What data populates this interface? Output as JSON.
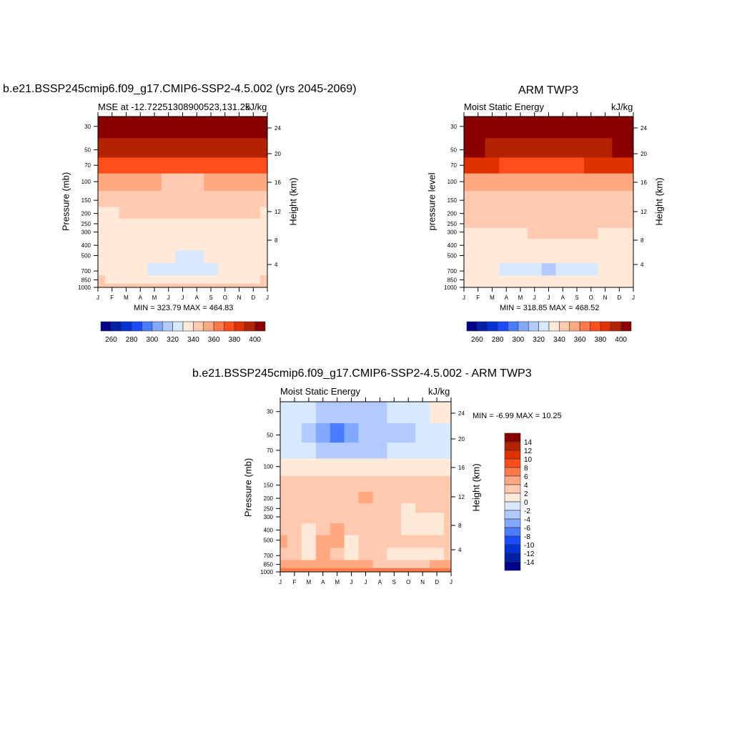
{
  "chart_data": [
    {
      "type": "heatmap",
      "title": "b.e21.BSSP245cmip6.f09_g17.CMIP6-SSP2-4.5.002 (yrs 2045-2069)",
      "left_string": "MSE at -12.72251308900523,131.25",
      "right_string": "kJ/kg",
      "ylabel": "Pressure (mb)",
      "ylabel_right": "Height (km)",
      "minmax": "MIN = 323.79 MAX = 464.83",
      "x_ticks": [
        "J",
        "F",
        "M",
        "A",
        "M",
        "J",
        "J",
        "A",
        "S",
        "O",
        "N",
        "D",
        "J"
      ],
      "y_ticks": [
        "30",
        "50",
        "70",
        "100",
        "150",
        "200",
        "250",
        "300",
        "400",
        "500",
        "700",
        "850",
        "1000"
      ],
      "y_ticks_right": [
        "24",
        "20",
        "16",
        "12",
        "8",
        "4"
      ],
      "levels": [
        30,
        50,
        70,
        100,
        150,
        200,
        250,
        300,
        400,
        500,
        700,
        850,
        1000
      ],
      "values": [
        [
          420,
          420,
          420,
          420,
          420,
          420,
          420,
          420,
          420,
          420,
          420,
          420,
          420
        ],
        [
          398,
          396,
          395,
          395,
          394,
          392,
          392,
          393,
          394,
          395,
          395,
          396,
          398
        ],
        [
          378,
          378,
          377,
          376,
          375,
          374,
          374,
          375,
          376,
          377,
          378,
          378,
          378
        ],
        [
          352,
          352,
          351,
          350,
          350,
          349,
          349,
          349,
          350,
          351,
          352,
          352,
          352
        ],
        [
          345,
          345,
          344,
          344,
          344,
          344,
          344,
          344,
          344,
          345,
          345,
          345,
          345
        ],
        [
          338,
          338,
          341,
          342,
          342,
          342,
          342,
          342,
          342,
          344,
          344,
          342,
          338
        ],
        [
          335,
          335,
          336,
          337,
          337,
          337,
          337,
          337,
          337,
          337,
          336,
          336,
          335
        ],
        [
          335,
          335,
          335,
          335,
          335,
          335,
          335,
          335,
          335,
          335,
          335,
          335,
          335
        ],
        [
          334,
          334,
          334,
          333,
          333,
          333,
          333,
          333,
          333,
          334,
          336,
          335,
          334
        ],
        [
          332,
          332,
          332,
          332,
          332,
          330,
          328,
          328,
          330,
          338,
          338,
          335,
          332
        ],
        [
          335,
          335,
          332,
          330,
          328,
          325,
          325,
          325,
          328,
          332,
          335,
          335,
          335
        ],
        [
          340,
          338,
          335,
          335,
          335,
          332,
          332,
          335,
          335,
          338,
          338,
          338,
          340
        ],
        [
          342,
          342,
          342,
          342,
          342,
          342,
          342,
          342,
          342,
          342,
          342,
          342,
          342
        ]
      ]
    },
    {
      "type": "heatmap",
      "title": "ARM TWP3",
      "left_string": "Moist Static Energy",
      "right_string": "kJ/kg",
      "ylabel": "pressure level",
      "ylabel_right": "Height (km)",
      "minmax": "MIN = 318.85 MAX = 468.52",
      "x_ticks": [
        "J",
        "F",
        "M",
        "A",
        "M",
        "J",
        "J",
        "A",
        "S",
        "O",
        "N",
        "D",
        "J"
      ],
      "y_ticks": [
        "30",
        "50",
        "70",
        "100",
        "150",
        "200",
        "250",
        "300",
        "400",
        "500",
        "700",
        "850",
        "1000"
      ],
      "y_ticks_right": [
        "24",
        "20",
        "16",
        "12",
        "8",
        "4"
      ],
      "levels": [
        30,
        50,
        70,
        100,
        150,
        200,
        250,
        300,
        400,
        500,
        700,
        850,
        1000
      ],
      "values": [
        [
          422,
          422,
          422,
          422,
          422,
          422,
          422,
          422,
          422,
          422,
          422,
          422,
          422
        ],
        [
          400,
          400,
          399,
          398,
          396,
          395,
          395,
          396,
          397,
          398,
          399,
          400,
          400
        ],
        [
          382,
          381,
          380,
          379,
          378,
          377,
          377,
          378,
          379,
          380,
          381,
          382,
          382
        ],
        [
          352,
          352,
          352,
          351,
          351,
          350,
          350,
          350,
          351,
          352,
          352,
          352,
          352
        ],
        [
          345,
          345,
          345,
          345,
          345,
          345,
          345,
          345,
          345,
          345,
          345,
          345,
          345
        ],
        [
          345,
          345,
          344,
          344,
          344,
          344,
          344,
          344,
          344,
          344,
          344,
          345,
          345
        ],
        [
          342,
          342,
          342,
          342,
          342,
          342,
          342,
          342,
          342,
          342,
          342,
          342,
          342
        ],
        [
          338,
          338,
          338,
          338,
          338,
          341,
          341,
          341,
          341,
          341,
          338,
          338,
          338
        ],
        [
          335,
          335,
          335,
          335,
          335,
          335,
          335,
          335,
          335,
          335,
          335,
          335,
          335
        ],
        [
          333,
          333,
          333,
          333,
          330,
          330,
          330,
          330,
          330,
          333,
          333,
          333,
          333
        ],
        [
          335,
          335,
          332,
          328,
          325,
          322,
          318,
          322,
          325,
          328,
          332,
          335,
          335
        ],
        [
          335,
          335,
          335,
          335,
          334,
          333,
          333,
          333,
          334,
          335,
          335,
          335,
          335
        ],
        [
          338,
          338,
          338,
          338,
          338,
          338,
          338,
          338,
          338,
          338,
          338,
          338,
          338
        ]
      ]
    },
    {
      "type": "heatmap",
      "title": "b.e21.BSSP245cmip6.f09_g17.CMIP6-SSP2-4.5.002 - ARM TWP3",
      "left_string": "Moist Static Energy",
      "right_string": "kJ/kg",
      "ylabel": "Pressure (mb)",
      "ylabel_right": "Height (km)",
      "minmax": "MIN =  -6.99 MAX =  10.25",
      "x_ticks": [
        "J",
        "F",
        "M",
        "A",
        "M",
        "J",
        "J",
        "A",
        "S",
        "O",
        "N",
        "D",
        "J"
      ],
      "y_ticks": [
        "30",
        "50",
        "70",
        "100",
        "150",
        "200",
        "250",
        "300",
        "400",
        "500",
        "700",
        "850",
        "1000"
      ],
      "y_ticks_right": [
        "24",
        "20",
        "16",
        "12",
        "8",
        "4"
      ],
      "levels": [
        30,
        50,
        70,
        100,
        150,
        200,
        250,
        300,
        400,
        500,
        700,
        850,
        1000
      ],
      "values": [
        [
          -1,
          -2,
          -2,
          -3,
          -4,
          -4,
          -4,
          -3,
          -2,
          -1,
          -1,
          1,
          1
        ],
        [
          -2,
          -2,
          -4,
          -5,
          -7,
          -5,
          -4,
          -4,
          -4,
          -3,
          -2,
          -2,
          -1
        ],
        [
          -1,
          -1,
          -2,
          -3,
          -3,
          -3,
          -3,
          -3,
          -2,
          -2,
          -1,
          -1,
          -1
        ],
        [
          1,
          1,
          1,
          1,
          1,
          1,
          1,
          1,
          1,
          1,
          1,
          1,
          1
        ],
        [
          3,
          3,
          3,
          3,
          3,
          3,
          3,
          3,
          3,
          3,
          3,
          3,
          3
        ],
        [
          3,
          3,
          3,
          3,
          3,
          3,
          5,
          3,
          3,
          3,
          3,
          3,
          3
        ],
        [
          3,
          3,
          3,
          3,
          3,
          3,
          3,
          3,
          3,
          1,
          3,
          3,
          3
        ],
        [
          3,
          3,
          3,
          3,
          3,
          3,
          3,
          3,
          3,
          1,
          1,
          1,
          3
        ],
        [
          3,
          3,
          1,
          3,
          5,
          3,
          3,
          3,
          3,
          1,
          1,
          1,
          3
        ],
        [
          5,
          3,
          1,
          5,
          5,
          1,
          3,
          3,
          3,
          3,
          3,
          3,
          3
        ],
        [
          3,
          3,
          1,
          5,
          3,
          1,
          3,
          3,
          1,
          1,
          1,
          1,
          3
        ],
        [
          5,
          5,
          5,
          5,
          5,
          5,
          5,
          3,
          3,
          3,
          3,
          5,
          5
        ],
        [
          6,
          6,
          6,
          6,
          6,
          6,
          6,
          6,
          6,
          6,
          6,
          6,
          6
        ]
      ]
    }
  ],
  "colorbars": {
    "abs": {
      "boundaries": [
        260,
        270,
        280,
        290,
        300,
        310,
        320,
        330,
        340,
        350,
        360,
        370,
        380,
        390,
        400
      ],
      "labels": [
        "260",
        "280",
        "300",
        "320",
        "340",
        "360",
        "380",
        "400"
      ]
    },
    "diff": {
      "boundaries": [
        -14,
        -12,
        -10,
        -8,
        -6,
        -4,
        -2,
        0,
        2,
        4,
        6,
        8,
        10,
        12,
        14
      ],
      "labels": [
        "-14",
        "-12",
        "-10",
        "-8",
        "-6",
        "-4",
        "-2",
        "0",
        "2",
        "4",
        "6",
        "8",
        "10",
        "12",
        "14"
      ]
    }
  },
  "colors": [
    "#00008a",
    "#0020a8",
    "#0032d4",
    "#1a4cff",
    "#4a7cff",
    "#82a8ff",
    "#b2caff",
    "#d8e8ff",
    "#ffe9d8",
    "#ffcab0",
    "#ffa882",
    "#ff7a48",
    "#ff4e1c",
    "#e03200",
    "#b52200",
    "#8a0000"
  ]
}
